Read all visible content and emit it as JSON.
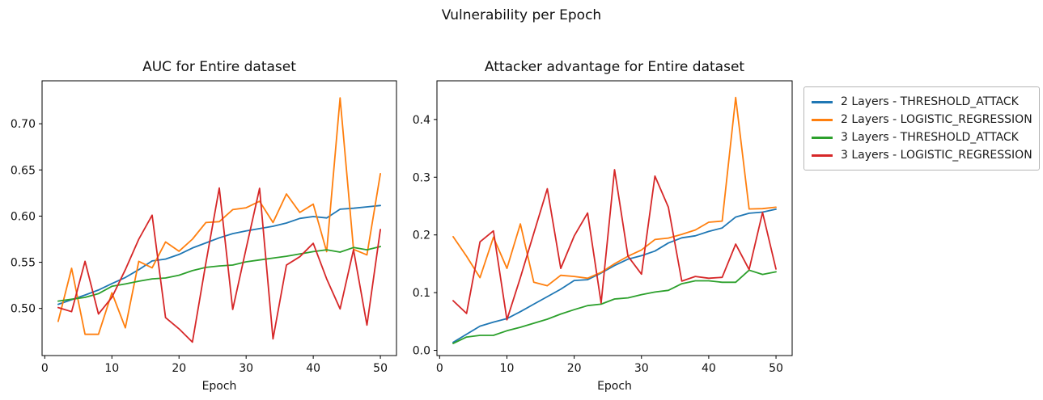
{
  "suptitle": "Vulnerability per Epoch",
  "colors": {
    "blue": "#1f77b4",
    "orange": "#ff7f0e",
    "green": "#2ca02c",
    "red": "#d62728",
    "axis": "#000000"
  },
  "legend": {
    "items": [
      {
        "label": "2 Layers - THRESHOLD_ATTACK",
        "color": "#1f77b4"
      },
      {
        "label": "2 Layers - LOGISTIC_REGRESSION",
        "color": "#ff7f0e"
      },
      {
        "label": "3 Layers - THRESHOLD_ATTACK",
        "color": "#2ca02c"
      },
      {
        "label": "3 Layers - LOGISTIC_REGRESSION",
        "color": "#d62728"
      }
    ]
  },
  "chart_data": [
    {
      "type": "line",
      "title": "AUC for Entire dataset",
      "xlabel": "Epoch",
      "ylabel": "",
      "x": [
        2,
        4,
        6,
        8,
        10,
        12,
        14,
        16,
        18,
        20,
        22,
        24,
        26,
        28,
        30,
        32,
        34,
        36,
        38,
        40,
        42,
        44,
        46,
        48,
        50
      ],
      "xlim": [
        -0.4,
        52.4
      ],
      "ylim": [
        0.449,
        0.7465
      ],
      "xticks": [
        0,
        10,
        20,
        30,
        40,
        50
      ],
      "xtick_labels": [
        "0",
        "10",
        "20",
        "30",
        "40",
        "50"
      ],
      "yticks": [
        0.5,
        0.55,
        0.6,
        0.65,
        0.7
      ],
      "ytick_labels": [
        "0.50",
        "0.55",
        "0.60",
        "0.65",
        "0.70"
      ],
      "grid": false,
      "series": [
        {
          "name": "2 Layers - THRESHOLD_ATTACK",
          "color": "#1f77b4",
          "values": [
            0.5045,
            0.5095,
            0.5145,
            0.52,
            0.527,
            0.5335,
            0.542,
            0.5515,
            0.5535,
            0.5585,
            0.5655,
            0.571,
            0.5765,
            0.581,
            0.584,
            0.5865,
            0.589,
            0.5925,
            0.5975,
            0.5995,
            0.598,
            0.6075,
            0.6085,
            0.61,
            0.6115
          ]
        },
        {
          "name": "2 Layers - LOGISTIC_REGRESSION",
          "color": "#ff7f0e",
          "values": [
            0.486,
            0.5435,
            0.472,
            0.472,
            0.517,
            0.479,
            0.551,
            0.544,
            0.572,
            0.562,
            0.575,
            0.593,
            0.594,
            0.607,
            0.609,
            0.616,
            0.593,
            0.624,
            0.604,
            0.613,
            0.5615,
            0.728,
            0.564,
            0.558,
            0.646
          ]
        },
        {
          "name": "3 Layers - THRESHOLD_ATTACK",
          "color": "#2ca02c",
          "values": [
            0.508,
            0.51,
            0.512,
            0.516,
            0.524,
            0.5265,
            0.5295,
            0.532,
            0.533,
            0.536,
            0.541,
            0.5445,
            0.546,
            0.547,
            0.5505,
            0.5525,
            0.5545,
            0.5565,
            0.559,
            0.5615,
            0.5635,
            0.561,
            0.566,
            0.5635,
            0.567
          ]
        },
        {
          "name": "3 Layers - LOGISTIC_REGRESSION",
          "color": "#d62728",
          "values": [
            0.501,
            0.4965,
            0.551,
            0.494,
            0.512,
            0.542,
            0.575,
            0.601,
            0.49,
            0.478,
            0.4635,
            0.549,
            0.6305,
            0.499,
            0.565,
            0.63,
            0.467,
            0.547,
            0.556,
            0.5705,
            0.532,
            0.4995,
            0.5635,
            0.482,
            0.5855
          ]
        }
      ]
    },
    {
      "type": "line",
      "title": "Attacker advantage for Entire dataset",
      "xlabel": "Epoch",
      "ylabel": "",
      "x": [
        2,
        4,
        6,
        8,
        10,
        12,
        14,
        16,
        18,
        20,
        22,
        24,
        26,
        28,
        30,
        32,
        34,
        36,
        38,
        40,
        42,
        44,
        46,
        48,
        50
      ],
      "xlim": [
        -0.4,
        52.4
      ],
      "ylim": [
        -0.009,
        0.467
      ],
      "xticks": [
        0,
        10,
        20,
        30,
        40,
        50
      ],
      "xtick_labels": [
        "0",
        "10",
        "20",
        "30",
        "40",
        "50"
      ],
      "yticks": [
        0.0,
        0.1,
        0.2,
        0.3,
        0.4
      ],
      "ytick_labels": [
        "0.0",
        "0.1",
        "0.2",
        "0.3",
        "0.4"
      ],
      "grid": false,
      "series": [
        {
          "name": "2 Layers - THRESHOLD_ATTACK",
          "color": "#1f77b4",
          "values": [
            0.014,
            0.028,
            0.042,
            0.049,
            0.055,
            0.067,
            0.08,
            0.093,
            0.106,
            0.121,
            0.1225,
            0.134,
            0.147,
            0.158,
            0.164,
            0.172,
            0.186,
            0.195,
            0.1985,
            0.206,
            0.212,
            0.231,
            0.2375,
            0.2395,
            0.2445
          ]
        },
        {
          "name": "2 Layers - LOGISTIC_REGRESSION",
          "color": "#ff7f0e",
          "values": [
            0.197,
            0.163,
            0.126,
            0.196,
            0.142,
            0.219,
            0.118,
            0.112,
            0.13,
            0.128,
            0.125,
            0.135,
            0.15,
            0.163,
            0.174,
            0.192,
            0.1945,
            0.201,
            0.2085,
            0.222,
            0.224,
            0.438,
            0.245,
            0.2455,
            0.248
          ]
        },
        {
          "name": "3 Layers - THRESHOLD_ATTACK",
          "color": "#2ca02c",
          "values": [
            0.012,
            0.023,
            0.026,
            0.026,
            0.034,
            0.04,
            0.047,
            0.054,
            0.063,
            0.0705,
            0.0775,
            0.08,
            0.089,
            0.091,
            0.0965,
            0.101,
            0.104,
            0.1155,
            0.1205,
            0.1205,
            0.118,
            0.118,
            0.139,
            0.1315,
            0.136
          ]
        },
        {
          "name": "3 Layers - LOGISTIC_REGRESSION",
          "color": "#d62728",
          "values": [
            0.086,
            0.064,
            0.188,
            0.207,
            0.053,
            0.126,
            0.203,
            0.28,
            0.142,
            0.198,
            0.238,
            0.082,
            0.313,
            0.163,
            0.132,
            0.302,
            0.248,
            0.12,
            0.128,
            0.125,
            0.1265,
            0.184,
            0.14,
            0.239,
            0.141
          ]
        }
      ]
    }
  ]
}
